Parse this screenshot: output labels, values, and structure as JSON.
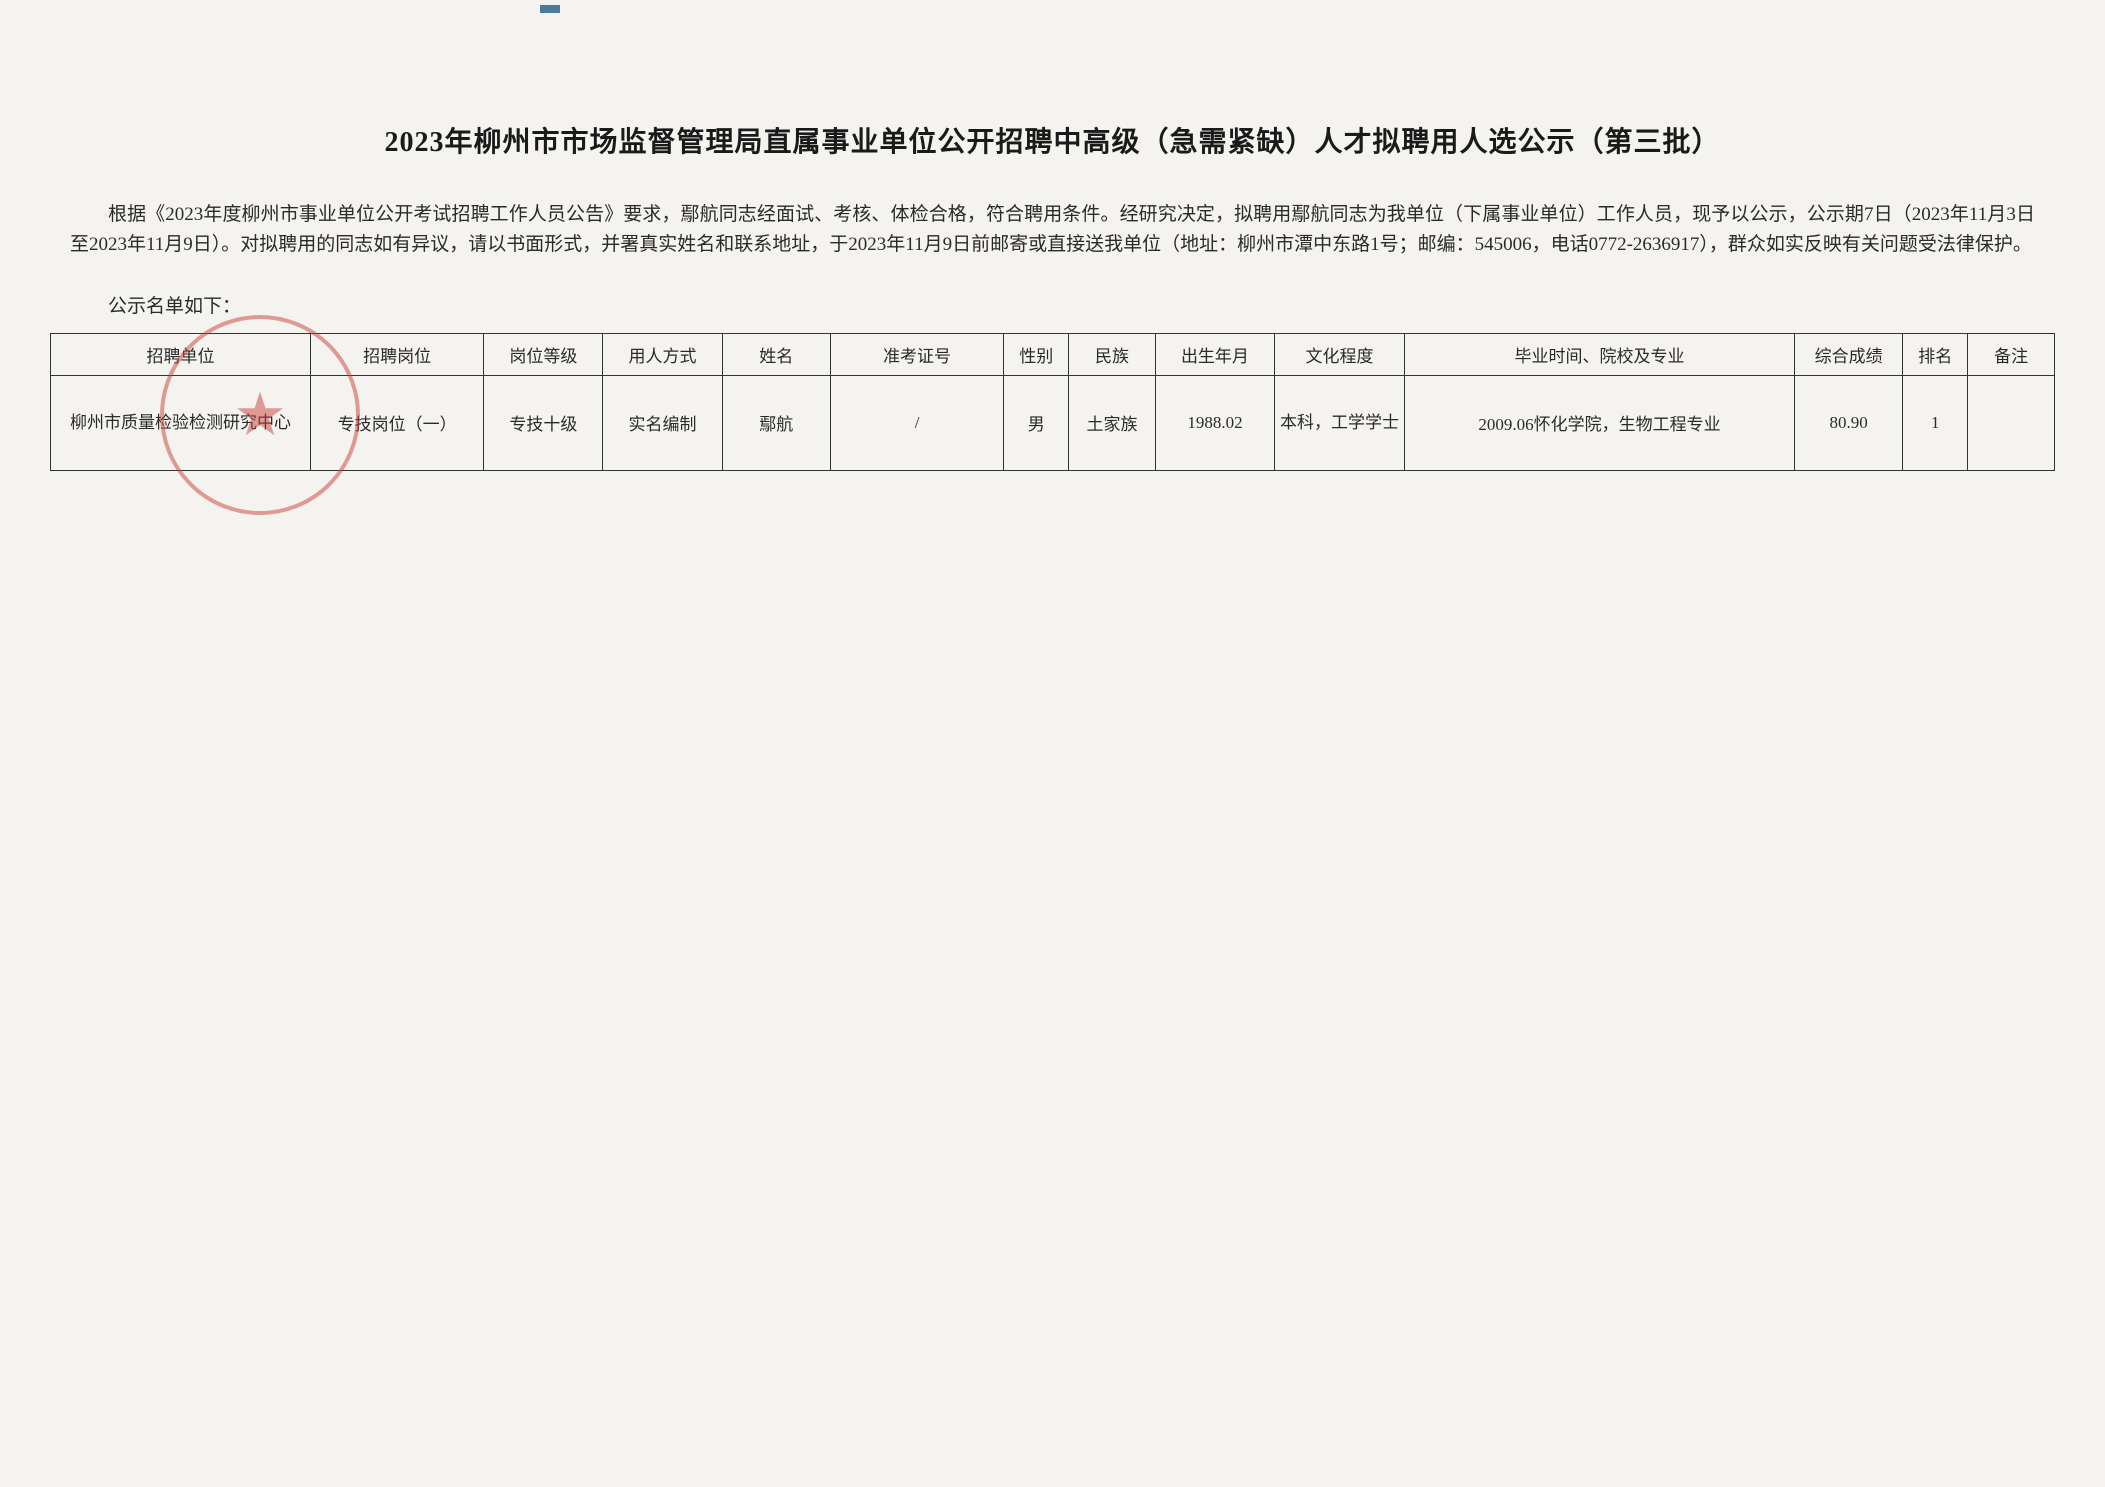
{
  "document": {
    "title": "2023年柳州市市场监督管理局直属事业单位公开招聘中高级（急需紧缺）人才拟聘用人选公示（第三批）",
    "paragraph": "根据《2023年度柳州市事业单位公开考试招聘工作人员公告》要求，鄢航同志经面试、考核、体检合格，符合聘用条件。经研究决定，拟聘用鄢航同志为我单位（下属事业单位）工作人员，现予以公示，公示期7日（2023年11月3日至2023年11月9日）。对拟聘用的同志如有异议，请以书面形式，并署真实姓名和联系地址，于2023年11月9日前邮寄或直接送我单位（地址：柳州市潭中东路1号；邮编：545006，电话0772-2636917），群众如实反映有关问题受法律保护。",
    "list_intro": "公示名单如下："
  },
  "table": {
    "headers": {
      "unit": "招聘单位",
      "position": "招聘岗位",
      "level": "岗位等级",
      "method": "用人方式",
      "name": "姓名",
      "examno": "准考证号",
      "gender": "性别",
      "ethnic": "民族",
      "birth": "出生年月",
      "edu": "文化程度",
      "grad": "毕业时间、院校及专业",
      "score": "综合成绩",
      "rank": "排名",
      "remark": "备注"
    },
    "rows": [
      {
        "unit": "柳州市质量检验检测研究中心",
        "position": "专技岗位（一）",
        "level": "专技十级",
        "method": "实名编制",
        "name": "鄢航",
        "examno": "/",
        "gender": "男",
        "ethnic": "土家族",
        "birth": "1988.02",
        "edu": "本科，工学学士",
        "grad": "2009.06怀化学院，生物工程专业",
        "score": "80.90",
        "rank": "1",
        "remark": ""
      }
    ]
  },
  "styling": {
    "background_color": "#f5f3ef",
    "text_color": "#2a2a2a",
    "border_color": "#333333",
    "stamp_color": "#c8413a",
    "title_fontsize": 28,
    "body_fontsize": 19,
    "table_fontsize": 17
  }
}
